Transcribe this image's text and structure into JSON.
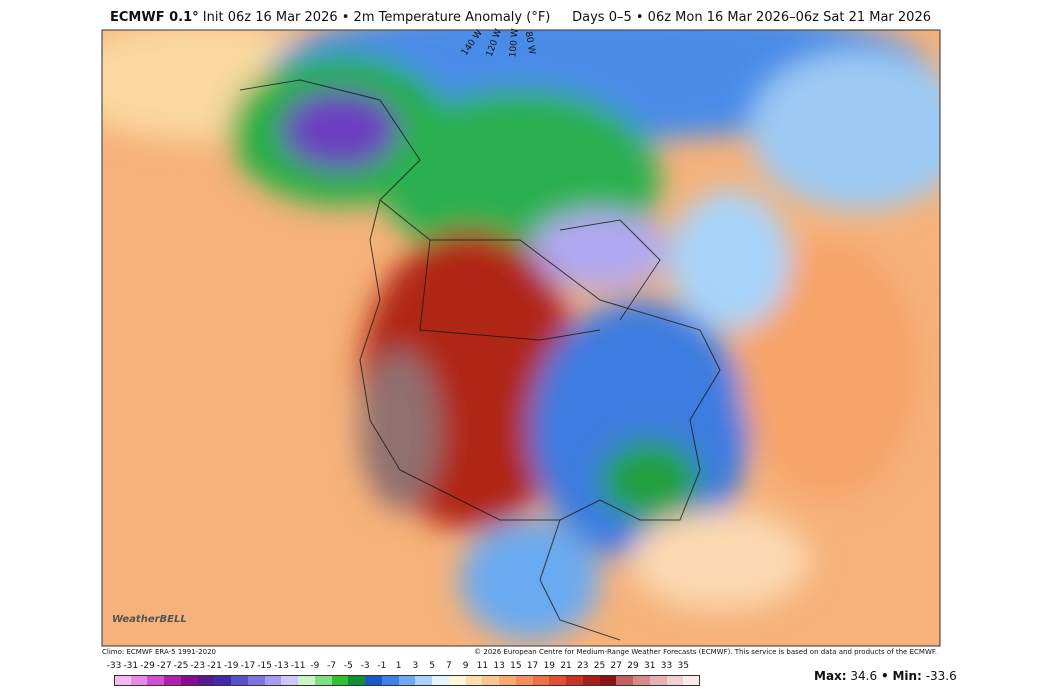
{
  "header": {
    "title_bold": "ECMWF 0.1°",
    "title_rest": "Init 06z 16 Mar 2026 • 2m Temperature Anomaly (°F)",
    "valid": "Days 0–5 • 06z Mon 16 Mar 2026–06z Sat 21 Mar 2026"
  },
  "map": {
    "longitude_labels": [
      "140 W",
      "120 W",
      "100 W",
      "80 W"
    ],
    "logo": "WeatherBELL"
  },
  "footer": {
    "climo": "Climo: ECMWF ERA-5 1991-2020",
    "copyright": "© 2026 European Centre for Medium-Range Weather Forecasts (ECMWF). This service is based on data and products of the ECMWF."
  },
  "colorbar": {
    "ticks": [
      -33,
      -31,
      -29,
      -27,
      -25,
      -23,
      -21,
      -19,
      -17,
      -15,
      -13,
      -11,
      -9,
      -7,
      -5,
      -3,
      -1,
      1,
      3,
      5,
      7,
      9,
      11,
      13,
      15,
      17,
      19,
      21,
      23,
      25,
      27,
      29,
      31,
      33,
      35
    ],
    "colors": [
      "#f5b8f5",
      "#e888e8",
      "#d050d0",
      "#b020b0",
      "#8a0a90",
      "#5a1890",
      "#402aa8",
      "#5a50c8",
      "#7c74e0",
      "#a49cf0",
      "#ccc6fa",
      "#c8f5c8",
      "#80e080",
      "#30c030",
      "#109030",
      "#1a5ac8",
      "#3c82e6",
      "#6eaaf2",
      "#a8d4fa",
      "#e4f4ff",
      "#fff4dc",
      "#fedcb0",
      "#fcc490",
      "#f9aa72",
      "#f58e5a",
      "#ee7046",
      "#e05034",
      "#c83424",
      "#a8201a",
      "#8a1414",
      "#c06060",
      "#d88a8a",
      "#e8b0b0",
      "#f2d0d0",
      "#faeaea"
    ]
  },
  "stats": {
    "max_label": "Max:",
    "max": 34.6,
    "separator": "•",
    "min_label": "Min:",
    "min": -33.6
  }
}
